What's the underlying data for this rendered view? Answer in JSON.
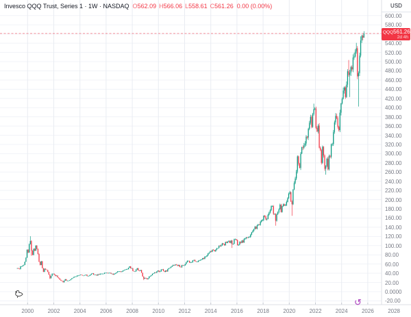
{
  "header": {
    "symbol_title": "Invesco QQQ Trust, Series 1 · 1W · NASDAQ",
    "ohlc": [
      {
        "label": "O",
        "value": "562.09"
      },
      {
        "label": "H",
        "value": "566.06"
      },
      {
        "label": "L",
        "value": "558.61"
      },
      {
        "label": "C",
        "value": "561.26"
      }
    ],
    "change": "0.00 (0.00%)"
  },
  "price_axis": {
    "currency_label": "USD",
    "ticks": [
      "600.00",
      "580.00",
      "560.00",
      "540.00",
      "520.00",
      "500.00",
      "480.00",
      "460.00",
      "440.00",
      "420.00",
      "400.00",
      "380.00",
      "360.00",
      "340.00",
      "320.00",
      "300.00",
      "280.00",
      "260.00",
      "240.00",
      "220.00",
      "200.00",
      "180.00",
      "160.00",
      "140.00",
      "120.00",
      "100.00",
      "80.00",
      "60.00",
      "40.00",
      "20.00",
      "0.0000",
      "-20.00"
    ]
  },
  "time_axis": {
    "ticks": [
      "2000",
      "2002",
      "2004",
      "2006",
      "2008",
      "2010",
      "2012",
      "2014",
      "2016",
      "2018",
      "2020",
      "2022",
      "2024",
      "2026",
      "2028"
    ]
  },
  "price_label": {
    "ticker": "QQQ",
    "price": "561.26",
    "countdown": "2d 4h"
  },
  "replay": {
    "glyph": "↺"
  },
  "colors": {
    "up": "#089981",
    "down": "#f23645",
    "axis_text": "#787b86",
    "title_text": "#131722",
    "grid_vertical": "#e9ecf2",
    "grid_horizontal": "#f1f3f8",
    "axis_border": "#dcdfe6",
    "tick_nub": "#c5c8d0",
    "price_line": "#f23645"
  },
  "chart_data": {
    "type": "candlestick",
    "symbol": "QQQ",
    "name": "Invesco QQQ Trust, Series 1",
    "interval": "1W",
    "exchange": "NASDAQ",
    "currency": "USD",
    "ylim": [
      -20,
      600
    ],
    "y_tick_step": 20,
    "x_tick_years": [
      2000,
      2028
    ],
    "last": {
      "open": 562.09,
      "high": 566.06,
      "low": 558.61,
      "close": 561.26,
      "change": "0.00 (0.00%)",
      "countdown": "2d 4h"
    },
    "start": {
      "year": 1999,
      "month": 3
    },
    "monthly_closes": [
      51,
      50,
      49,
      55,
      55,
      57,
      58,
      65,
      74,
      91,
      85,
      103,
      110,
      89,
      80,
      93,
      89,
      100,
      93,
      82,
      65,
      58,
      66,
      51,
      43,
      50,
      48,
      47,
      43,
      37,
      29,
      34,
      39,
      39,
      37,
      34,
      35,
      31,
      29,
      26,
      24,
      23,
      20.5,
      24,
      27,
      24,
      24,
      24,
      25,
      27,
      29,
      30,
      32,
      33,
      33,
      35,
      35,
      36,
      37,
      36,
      35,
      35,
      36,
      37,
      34,
      34,
      35,
      37,
      39,
      40,
      37,
      37,
      37,
      35,
      38,
      37,
      39,
      39,
      39,
      39,
      41,
      41,
      41,
      40,
      41,
      41,
      39,
      39,
      37,
      39,
      40,
      42,
      44,
      44,
      44,
      43,
      44,
      46,
      47,
      48,
      49,
      49,
      52,
      55,
      51,
      51,
      45,
      44,
      44,
      48,
      51,
      46,
      45,
      47,
      41,
      33,
      28,
      30,
      29,
      27,
      29,
      33,
      34,
      36,
      39,
      40,
      42,
      41,
      44,
      46,
      43,
      44,
      48,
      49,
      45,
      43,
      46,
      44,
      49,
      51,
      52,
      54,
      56,
      58,
      57,
      59,
      58,
      56,
      58,
      54,
      53,
      58,
      57,
      57,
      60,
      64,
      67,
      67,
      63,
      64,
      64,
      68,
      69,
      66,
      65,
      65,
      67,
      68,
      69,
      70,
      73,
      71,
      76,
      76,
      79,
      83,
      85,
      88,
      87,
      91,
      90,
      88,
      91,
      94,
      95,
      100,
      99,
      101,
      105,
      103,
      101,
      108,
      106,
      109,
      110,
      106,
      111,
      103,
      104,
      114,
      114,
      112,
      101,
      102,
      108,
      106,
      111,
      107,
      114,
      116,
      118,
      117,
      118,
      119,
      124,
      129,
      132,
      136,
      141,
      137,
      144,
      146,
      145,
      152,
      155,
      156,
      165,
      163,
      157,
      158,
      167,
      172,
      177,
      186,
      186,
      169,
      169,
      154,
      168,
      173,
      179,
      189,
      173,
      186,
      190,
      187,
      188,
      195,
      203,
      213,
      216,
      196,
      190,
      222,
      236,
      246,
      261,
      294,
      278,
      269,
      300,
      314,
      313,
      318,
      322,
      337,
      335,
      354,
      367,
      380,
      358,
      386,
      397,
      398,
      356,
      348,
      361,
      313,
      308,
      280,
      315,
      296,
      267,
      273,
      289,
      266,
      295,
      293,
      320,
      321,
      347,
      368,
      382,
      377,
      358,
      351,
      389,
      409,
      419,
      437,
      444,
      423,
      450,
      479,
      471,
      476,
      488,
      483,
      509,
      511,
      522,
      529,
      468,
      475,
      513,
      546,
      556,
      552,
      561.26
    ],
    "extremes": {
      "2000-03": {
        "h": 120.5
      },
      "2000-04": {
        "l": 78
      },
      "2001-09": {
        "l": 27.5
      },
      "2002-10": {
        "l": 19.8
      },
      "2008-11": {
        "l": 25.1
      },
      "2015-08": {
        "l": 95
      },
      "2018-12": {
        "l": 143.5
      },
      "2020-03": {
        "l": 164.9
      },
      "2021-11": {
        "h": 408.7
      },
      "2022-10": {
        "l": 254.3
      },
      "2024-07": {
        "h": 503.5
      },
      "2024-08": {
        "l": 423
      },
      "2025-02": {
        "h": 540.8
      },
      "2025-04": {
        "l": 402.4
      },
      "2025-09": {
        "h": 566.06,
        "l": 558.61
      }
    }
  }
}
